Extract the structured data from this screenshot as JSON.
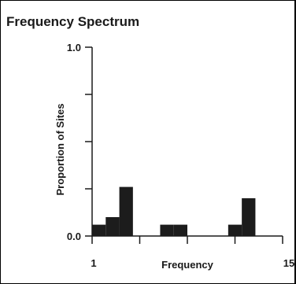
{
  "chart_data": {
    "type": "bar",
    "title": "Frequency Spectrum",
    "xlabel": "Frequency",
    "ylabel": "Proportion of Sites",
    "xlim": [
      1,
      15
    ],
    "ylim": [
      0.0,
      1.0
    ],
    "x_tick_labels": [
      "1",
      "15"
    ],
    "y_tick_labels": [
      "1.0",
      "0.0"
    ],
    "bin_width": 1,
    "bins": [
      1,
      2,
      3,
      4,
      5,
      6,
      7,
      8,
      9,
      10,
      11,
      12,
      13,
      14
    ],
    "values": [
      0.06,
      0.1,
      0.26,
      0.0,
      0.0,
      0.06,
      0.06,
      0.0,
      0.0,
      0.0,
      0.06,
      0.2,
      0.0,
      0.0
    ],
    "bar_color": "#1c1c1c",
    "grid": false,
    "legend": "none"
  }
}
